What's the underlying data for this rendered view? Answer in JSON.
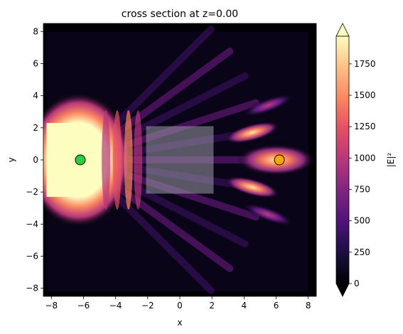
{
  "chart_data": {
    "type": "heatmap",
    "title": "cross section at z=0.00",
    "xlabel": "x",
    "ylabel": "y",
    "xlim": [
      -8.5,
      8.5
    ],
    "ylim": [
      -8.5,
      8.5
    ],
    "xticks": [
      -8,
      -6,
      -4,
      -2,
      0,
      2,
      4,
      6,
      8
    ],
    "yticks": [
      -8,
      -6,
      -4,
      -2,
      0,
      2,
      4,
      6,
      8
    ],
    "xtick_labels": [
      "−8",
      "−6",
      "−4",
      "−2",
      "0",
      "2",
      "4",
      "6",
      "8"
    ],
    "ytick_labels": [
      "−8",
      "−6",
      "−4",
      "−2",
      "0",
      "2",
      "4",
      "6",
      "8"
    ],
    "colormap": "magma",
    "colorbar": {
      "label": "|E|²",
      "ticks": [
        0,
        250,
        500,
        750,
        1000,
        1250,
        1500,
        1750
      ],
      "tick_labels": [
        "0",
        "250",
        "500",
        "750",
        "1000",
        "1250",
        "1500",
        "1750"
      ],
      "range": [
        0,
        1970
      ],
      "extend": "both"
    },
    "field_extent": {
      "x": [
        -8.3,
        8.0
      ],
      "y": [
        -8.2,
        8.0
      ]
    },
    "scatterer_box": {
      "x": [
        -2.1,
        2.1
      ],
      "y": [
        -2.1,
        2.1
      ]
    },
    "markers": [
      {
        "name": "source",
        "x": -6.2,
        "y": 0,
        "color": "#2ecc40"
      },
      {
        "name": "monitor",
        "x": 6.2,
        "y": 0,
        "color": "#ffa500"
      }
    ],
    "grid": false
  }
}
